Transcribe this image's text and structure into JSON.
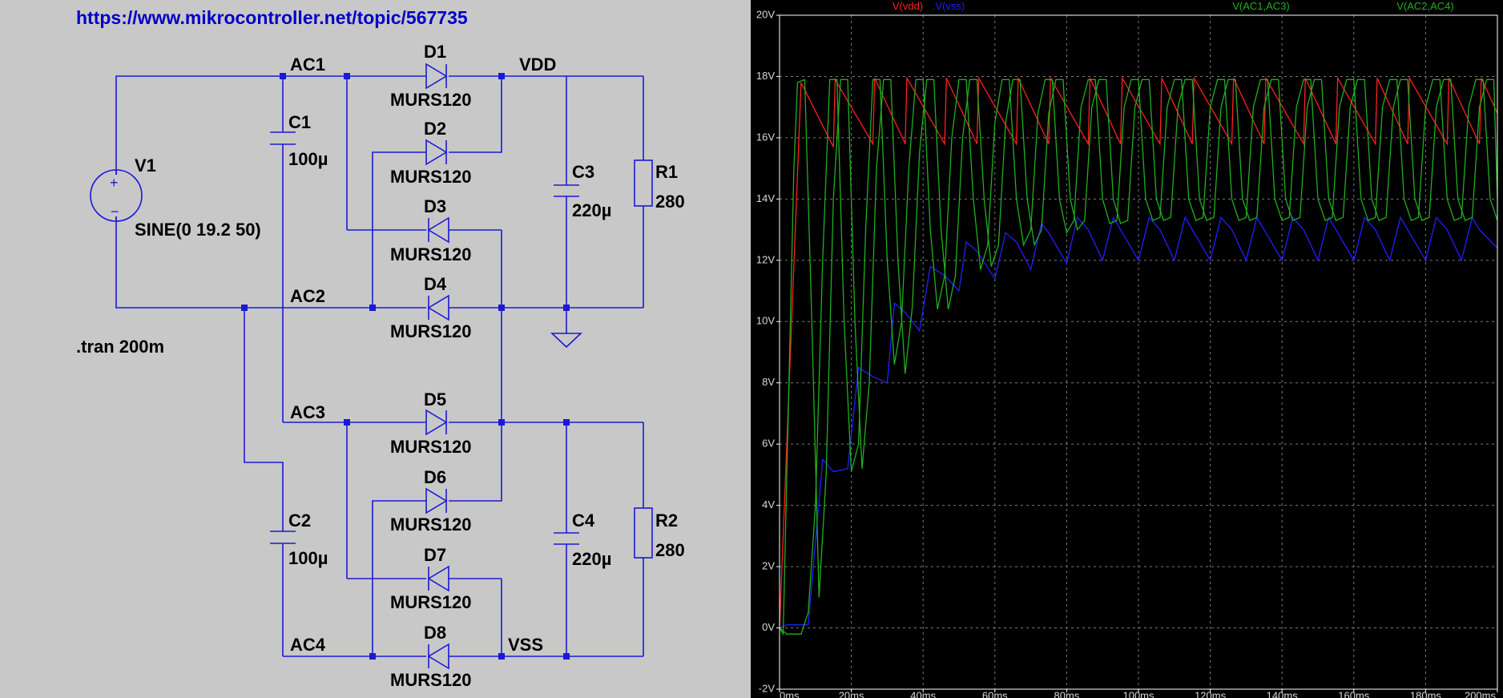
{
  "schematic": {
    "url": "https://www.mikrocontroller.net/topic/567735",
    "directive": ".tran 200m",
    "source": {
      "name": "V1",
      "value": "SINE(0 19.2 50)"
    },
    "nets": {
      "ac1": "AC1",
      "ac2": "AC2",
      "ac3": "AC3",
      "ac4": "AC4",
      "vdd": "VDD",
      "vss": "VSS"
    },
    "capacitors": [
      {
        "name": "C1",
        "value": "100µ"
      },
      {
        "name": "C2",
        "value": "100µ"
      },
      {
        "name": "C3",
        "value": "220µ"
      },
      {
        "name": "C4",
        "value": "220µ"
      }
    ],
    "resistors": [
      {
        "name": "R1",
        "value": "280"
      },
      {
        "name": "R2",
        "value": "280"
      }
    ],
    "diodes": [
      {
        "name": "D1",
        "model": "MURS120"
      },
      {
        "name": "D2",
        "model": "MURS120"
      },
      {
        "name": "D3",
        "model": "MURS120"
      },
      {
        "name": "D4",
        "model": "MURS120"
      },
      {
        "name": "D5",
        "model": "MURS120"
      },
      {
        "name": "D6",
        "model": "MURS120"
      },
      {
        "name": "D7",
        "model": "MURS120"
      },
      {
        "name": "D8",
        "model": "MURS120"
      }
    ]
  },
  "chart_data": {
    "type": "line",
    "xlabel": "",
    "ylabel": "",
    "xlim": [
      0,
      200
    ],
    "ylim": [
      -2,
      20
    ],
    "x_ticks": [
      "0ms",
      "20ms",
      "40ms",
      "60ms",
      "80ms",
      "100ms",
      "120ms",
      "140ms",
      "160ms",
      "180ms",
      "200ms"
    ],
    "y_ticks": [
      "-2V",
      "0V",
      "2V",
      "4V",
      "6V",
      "8V",
      "10V",
      "12V",
      "14V",
      "16V",
      "18V",
      "20V"
    ],
    "grid": true,
    "legend_placement": "top",
    "colors": {
      "vdd": "#ff2020",
      "vss": "#2020ff",
      "ac13": "#20b020",
      "ac24": "#20b020",
      "grid": "#7a7a7a",
      "axis": "#ffffff"
    },
    "series": [
      {
        "name": "V(vdd)",
        "x": [
          0,
          6,
          15,
          15.5,
          26,
          26.5,
          35,
          35.5,
          46,
          46.5,
          55,
          55.5,
          66,
          66.5,
          75,
          75.5,
          86,
          86.5,
          95,
          95.5,
          106,
          106.5,
          115,
          115.5,
          126,
          126.5,
          135,
          135.5,
          146,
          146.5,
          155,
          155.5,
          166,
          166.5,
          175,
          175.5,
          186,
          186.5,
          195,
          195.5,
          200
        ],
        "y": [
          0,
          17.8,
          15.7,
          17.9,
          15.8,
          17.95,
          15.8,
          17.95,
          15.8,
          17.95,
          15.8,
          17.95,
          15.8,
          17.95,
          15.8,
          17.95,
          15.8,
          17.95,
          15.8,
          17.95,
          15.8,
          17.95,
          15.8,
          17.95,
          15.8,
          17.95,
          15.8,
          17.95,
          15.8,
          17.95,
          15.8,
          17.95,
          15.8,
          17.95,
          15.8,
          17.95,
          15.8,
          17.95,
          15.8,
          17.95,
          16.8
        ]
      },
      {
        "name": ".V(vss)",
        "x": [
          0,
          2,
          6,
          8,
          12,
          15,
          19,
          22,
          26,
          30,
          32,
          35,
          39,
          42,
          46,
          50,
          52,
          55,
          60,
          63,
          66,
          70,
          73,
          75,
          80,
          83,
          86,
          90,
          93,
          95,
          100,
          103,
          106,
          110,
          113,
          115,
          120,
          123,
          126,
          130,
          133,
          135,
          140,
          143,
          146,
          150,
          153,
          155,
          160,
          163,
          166,
          170,
          173,
          175,
          180,
          183,
          186,
          190,
          193,
          195,
          200
        ],
        "y": [
          0,
          0.1,
          0.1,
          0.1,
          5.5,
          5.1,
          5.2,
          8.5,
          8.2,
          8.0,
          10.6,
          10.3,
          9.7,
          11.8,
          11.5,
          11.0,
          12.6,
          12.3,
          11.4,
          12.9,
          12.6,
          11.7,
          13.2,
          12.9,
          11.9,
          13.4,
          13.0,
          12.0,
          13.4,
          13.0,
          12.0,
          13.4,
          13.0,
          12.0,
          13.4,
          13.0,
          12.0,
          13.4,
          13.0,
          12.0,
          13.4,
          13.0,
          12.0,
          13.4,
          13.0,
          12.0,
          13.4,
          13.0,
          12.0,
          13.4,
          13.0,
          12.0,
          13.4,
          13.0,
          12.0,
          13.4,
          13.0,
          12.0,
          13.4,
          13.0,
          12.4
        ]
      },
      {
        "name": "V(AC1,AC3)",
        "x": [
          0,
          1,
          4,
          5,
          7,
          9,
          11,
          13,
          15,
          17,
          19,
          21,
          23,
          25,
          27,
          29,
          31,
          33,
          35,
          37,
          39,
          41,
          43,
          45,
          47,
          49,
          51,
          53,
          55,
          57,
          59,
          61,
          63,
          65,
          67,
          69,
          71,
          73,
          75,
          77,
          79,
          81,
          83,
          85,
          87,
          89,
          91,
          93,
          95,
          97,
          99,
          101,
          103,
          105,
          107,
          109,
          111,
          113,
          115,
          117,
          119,
          121,
          123,
          125,
          127,
          129,
          131,
          133,
          135,
          137,
          139,
          141,
          143,
          145,
          147,
          149,
          151,
          153,
          155,
          157,
          159,
          161,
          163,
          165,
          167,
          169,
          171,
          173,
          175,
          177,
          179,
          181,
          183,
          185,
          187,
          189,
          191,
          193,
          195,
          197,
          199,
          200
        ],
        "y": [
          0,
          -0.2,
          15,
          17.8,
          17.9,
          10,
          1,
          5,
          14,
          17.9,
          17.9,
          10,
          5.2,
          8,
          15,
          17.9,
          17.9,
          12,
          8.3,
          10.5,
          15.5,
          17.9,
          17.9,
          13,
          10.4,
          11.5,
          16,
          17.9,
          17.9,
          14,
          11.8,
          12.5,
          16.5,
          17.9,
          17.9,
          14,
          12.5,
          13,
          16.8,
          17.9,
          17.9,
          14,
          13,
          13.3,
          17,
          17.9,
          17.9,
          14,
          13.2,
          13.3,
          17,
          17.9,
          17.9,
          14,
          13.3,
          13.4,
          17,
          17.9,
          17.9,
          14,
          13.3,
          13.4,
          17,
          17.9,
          17.9,
          14,
          13.3,
          13.4,
          17,
          17.9,
          17.9,
          14,
          13.3,
          13.4,
          17,
          17.9,
          17.9,
          14,
          13.3,
          13.4,
          17,
          17.9,
          17.9,
          14,
          13.3,
          13.4,
          17,
          17.9,
          17.9,
          14,
          13.3,
          13.4,
          17,
          17.9,
          17.9,
          14,
          13.3,
          13.4,
          17,
          17.9,
          17.9,
          14
        ]
      },
      {
        "name": "V(AC2,AC4)",
        "x": [
          0,
          2,
          4,
          6,
          8,
          10,
          12,
          14,
          16,
          18,
          20,
          22,
          24,
          26,
          28,
          30,
          32,
          34,
          36,
          38,
          40,
          42,
          44,
          46,
          48,
          50,
          52,
          54,
          56,
          58,
          60,
          62,
          64,
          66,
          68,
          70,
          72,
          74,
          76,
          78,
          80,
          82,
          84,
          86,
          88,
          90,
          92,
          94,
          96,
          98,
          100,
          102,
          104,
          106,
          108,
          110,
          112,
          114,
          116,
          118,
          120,
          122,
          124,
          126,
          128,
          130,
          132,
          134,
          136,
          138,
          140,
          142,
          144,
          146,
          148,
          150,
          152,
          154,
          156,
          158,
          160,
          162,
          164,
          166,
          168,
          170,
          172,
          174,
          176,
          178,
          180,
          182,
          184,
          186,
          188,
          190,
          192,
          194,
          196,
          198,
          200
        ],
        "y": [
          0,
          -0.2,
          -0.2,
          -0.2,
          0.5,
          4,
          12,
          17.9,
          17.9,
          10,
          5.1,
          6,
          13,
          17.9,
          17.9,
          12,
          8.6,
          10,
          15,
          17.9,
          17.9,
          13,
          10.4,
          11.5,
          16,
          17.9,
          17.9,
          14,
          11.7,
          12.5,
          16.5,
          17.9,
          17.9,
          14,
          12.5,
          13,
          16.8,
          17.9,
          17.9,
          14,
          12.9,
          13.3,
          17,
          17.9,
          17.9,
          14,
          13.2,
          13.3,
          17,
          17.9,
          17.9,
          14,
          13.3,
          13.4,
          17,
          17.9,
          17.9,
          14,
          13.3,
          13.4,
          17,
          17.9,
          17.9,
          14,
          13.3,
          13.4,
          17,
          17.9,
          17.9,
          14,
          13.3,
          13.4,
          17,
          17.9,
          17.9,
          14,
          13.3,
          13.4,
          17,
          17.9,
          17.9,
          14,
          13.3,
          13.4,
          17,
          17.9,
          17.9,
          14,
          13.3,
          13.4,
          17,
          17.9,
          17.9,
          14,
          13.3,
          13.4,
          17,
          17.9,
          17.9,
          14,
          13.3
        ]
      }
    ]
  }
}
